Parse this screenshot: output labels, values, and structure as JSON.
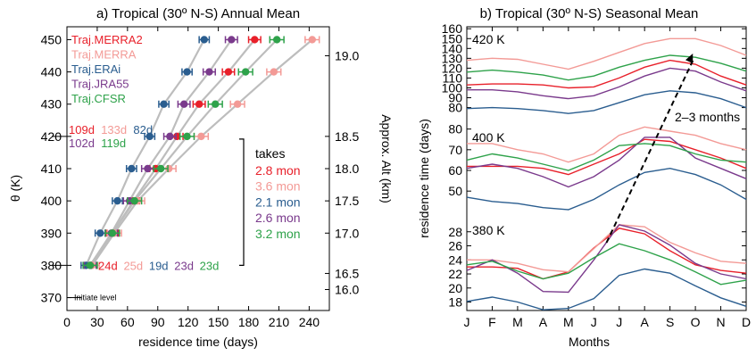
{
  "chart_data": [
    {
      "type": "scatter",
      "title": "a) Tropical (30º N-S) Annual Mean",
      "xlabel": "residence time (days)",
      "ylabel": "θ (K)",
      "y2label": "Approx. Alt (km)",
      "xlim": [
        0,
        260
      ],
      "ylim": [
        366,
        454
      ],
      "xticks": [
        "0",
        "30",
        "60",
        "90",
        "120",
        "150",
        "180",
        "210",
        "240"
      ],
      "yticks": [
        "370",
        "380",
        "390",
        "400",
        "410",
        "420",
        "430",
        "440",
        "450"
      ],
      "y2ticks": [
        {
          "theta": 372.5,
          "label": "16.0"
        },
        {
          "theta": 377.5,
          "label": "16.5"
        },
        {
          "theta": 390,
          "label": "17.0"
        },
        {
          "theta": 400,
          "label": "17.5"
        },
        {
          "theta": 410,
          "label": "18.0"
        },
        {
          "theta": 420,
          "label": "18.5"
        },
        {
          "theta": 445,
          "label": "19.0"
        }
      ],
      "theta": [
        380,
        390,
        400,
        410,
        420,
        430,
        440,
        450
      ],
      "series": [
        {
          "name": "Traj.MERRA2",
          "color": "#e8202a",
          "x": [
            24,
            45,
            66,
            88,
            109,
            131,
            160,
            186
          ],
          "err": 6
        },
        {
          "name": "Traj.MERRA",
          "color": "#f39a96",
          "x": [
            25,
            47,
            70,
            101,
            133,
            169,
            205,
            243
          ],
          "err": 7
        },
        {
          "name": "Traj.ERAi",
          "color": "#2a5d8f",
          "x": [
            19,
            33,
            50,
            64,
            82,
            96,
            119,
            136
          ],
          "err": 5
        },
        {
          "name": "Traj.JRA55",
          "color": "#7a3a8c",
          "x": [
            23,
            44,
            62,
            80,
            102,
            116,
            141,
            163
          ],
          "err": 6
        },
        {
          "name": "Traj.CFSR",
          "color": "#2ea24a",
          "x": [
            23,
            45,
            67,
            93,
            119,
            147,
            177,
            208
          ],
          "err": 7
        }
      ],
      "annotations": {
        "row420_top": [
          {
            "text": "109d",
            "color": "#e8202a"
          },
          {
            "text": "133d",
            "color": "#f39a96"
          },
          {
            "text": "82d",
            "color": "#2a5d8f"
          }
        ],
        "row420_bottom": [
          {
            "text": "102d",
            "color": "#7a3a8c"
          },
          {
            "text": "119d",
            "color": "#2ea24a"
          }
        ],
        "row380": [
          {
            "text": "24d",
            "color": "#e8202a"
          },
          {
            "text": "25d",
            "color": "#f39a96"
          },
          {
            "text": "19d",
            "color": "#2a5d8f"
          },
          {
            "text": "23d",
            "color": "#7a3a8c"
          },
          {
            "text": "23d",
            "color": "#2ea24a"
          }
        ],
        "takes_label": "takes",
        "takes": [
          {
            "text": "2.8 mon",
            "color": "#e8202a"
          },
          {
            "text": "3.6 mon",
            "color": "#f39a96"
          },
          {
            "text": "2.1 mon",
            "color": "#2a5d8f"
          },
          {
            "text": "2.6 mon",
            "color": "#7a3a8c"
          },
          {
            "text": "3.2 mon",
            "color": "#2ea24a"
          }
        ],
        "initiate_label": "Initiate level"
      }
    },
    {
      "type": "line",
      "title": "b) Tropical (30º N-S) Seasonal Mean",
      "xlabel": "Months",
      "ylabel": "residence time (days)",
      "categories": [
        "J",
        "F",
        "M",
        "A",
        "M",
        "J",
        "J",
        "A",
        "S",
        "O",
        "N",
        "D"
      ],
      "arrow_label": "2–3 months",
      "panels": [
        {
          "label": "420 K",
          "ylim": [
            76,
            162
          ],
          "yticks": [
            80,
            90,
            100,
            110,
            120,
            130,
            140,
            150,
            160
          ],
          "series": [
            {
              "name": "Traj.MERRA2",
              "color": "#e8202a",
              "values": [
                103,
                104,
                104,
                103,
                100,
                101,
                110,
                121,
                128,
                124,
                112,
                103
              ]
            },
            {
              "name": "Traj.MERRA",
              "color": "#f39a96",
              "values": [
                128,
                130,
                129,
                124,
                119,
                127,
                136,
                145,
                150,
                150,
                143,
                133
              ]
            },
            {
              "name": "Traj.ERAi",
              "color": "#2a5d8f",
              "values": [
                79,
                80,
                79,
                77,
                74,
                77,
                85,
                93,
                97,
                95,
                89,
                80
              ]
            },
            {
              "name": "Traj.JRA55",
              "color": "#7a3a8c",
              "values": [
                98,
                98,
                96,
                92,
                89,
                92,
                101,
                112,
                120,
                117,
                106,
                97
              ]
            },
            {
              "name": "Traj.CFSR",
              "color": "#2ea24a",
              "values": [
                116,
                118,
                116,
                113,
                108,
                112,
                121,
                128,
                133,
                131,
                125,
                117
              ]
            }
          ]
        },
        {
          "label": "400 K",
          "ylim": [
            38,
            82
          ],
          "yticks": [
            50,
            60,
            70,
            80
          ],
          "series": [
            {
              "name": "Traj.MERRA2",
              "color": "#e8202a",
              "values": [
                62,
                62,
                62,
                61,
                58,
                63,
                68,
                75,
                74,
                70,
                66,
                61
              ]
            },
            {
              "name": "Traj.MERRA",
              "color": "#f39a96",
              "values": [
                73,
                73,
                70,
                68,
                64,
                68,
                77,
                81,
                79,
                77,
                73,
                70
              ]
            },
            {
              "name": "Traj.ERAi",
              "color": "#2a5d8f",
              "values": [
                47,
                45,
                44,
                42,
                41,
                46,
                53,
                59,
                61,
                58,
                53,
                46
              ]
            },
            {
              "name": "Traj.JRA55",
              "color": "#7a3a8c",
              "values": [
                61,
                63,
                61,
                57,
                52,
                57,
                65,
                76,
                76,
                66,
                61,
                56
              ]
            },
            {
              "name": "Traj.CFSR",
              "color": "#2ea24a",
              "values": [
                65,
                68,
                66,
                63,
                60,
                65,
                72,
                73,
                72,
                68,
                65,
                64
              ]
            }
          ]
        },
        {
          "label": "380 K",
          "ylim": [
            16.8,
            30
          ],
          "yticks": [
            18,
            20,
            22,
            24,
            26,
            28
          ],
          "series": [
            {
              "name": "Traj.MERRA2",
              "color": "#e8202a",
              "values": [
                23,
                23,
                22.8,
                21.3,
                22.3,
                25.7,
                28.5,
                27.7,
                25.3,
                23.3,
                22.5,
                22.1
              ]
            },
            {
              "name": "Traj.MERRA",
              "color": "#f39a96",
              "values": [
                24,
                24,
                23.5,
                22.6,
                22.3,
                25.6,
                29,
                28.7,
                26.5,
                25,
                23.8,
                23.5
              ]
            },
            {
              "name": "Traj.ERAi",
              "color": "#2a5d8f",
              "values": [
                18.1,
                18.7,
                18,
                16.9,
                17.1,
                18.5,
                21.8,
                22.7,
                22.1,
                20.3,
                18.6,
                17.4
              ]
            },
            {
              "name": "Traj.JRA55",
              "color": "#7a3a8c",
              "values": [
                22.5,
                24,
                22.1,
                19.5,
                19.4,
                24,
                29,
                28.1,
                26.1,
                23.5,
                22,
                21.3
              ]
            },
            {
              "name": "Traj.CFSR",
              "color": "#2ea24a",
              "values": [
                23.3,
                23.8,
                22.4,
                21.3,
                22.1,
                24.3,
                26.3,
                25.3,
                24,
                22.3,
                20.5,
                21.1
              ]
            }
          ]
        }
      ]
    }
  ]
}
